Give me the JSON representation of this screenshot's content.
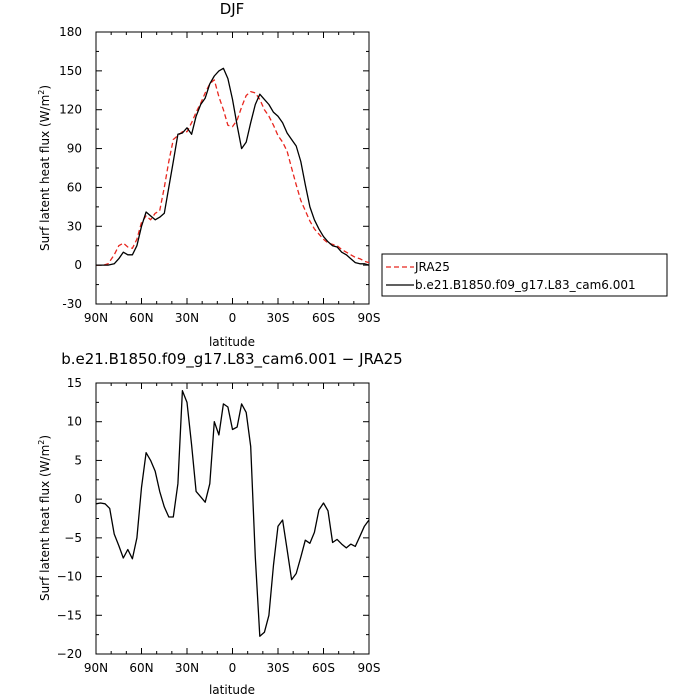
{
  "chart_data": [
    {
      "type": "line",
      "title": "DJF",
      "xlabel": "latitude",
      "ylabel": "Surf latent heat flux (W/m²)",
      "ylabel_main": "Surf latent heat flux (W/m",
      "ylabel_sup": "2",
      "ylabel_tail": ")",
      "xlim": [
        90,
        -90
      ],
      "ylim": [
        -30,
        180
      ],
      "x_ticks": [
        90,
        60,
        30,
        0,
        -30,
        -60,
        -90
      ],
      "x_tick_labels": [
        "90N",
        "60N",
        "30N",
        "0",
        "30S",
        "60S",
        "90S"
      ],
      "y_ticks": [
        -30,
        0,
        30,
        60,
        90,
        120,
        150,
        180
      ],
      "y_tick_labels": [
        "-30",
        "0",
        "30",
        "60",
        "90",
        "120",
        "150",
        "180"
      ],
      "legend": "outside-right",
      "series": [
        {
          "name": "JRA25",
          "color": "#e8261e",
          "dash": "dashed",
          "x": [
            90,
            85,
            82,
            78,
            75,
            72,
            69,
            66,
            63,
            60,
            57,
            54,
            51,
            48,
            45,
            42,
            39,
            36,
            33,
            30,
            27,
            24,
            21,
            18,
            15,
            12,
            9,
            6,
            3,
            0,
            -3,
            -6,
            -9,
            -12,
            -15,
            -18,
            -21,
            -24,
            -27,
            -30,
            -33,
            -36,
            -39,
            -42,
            -45,
            -48,
            -51,
            -54,
            -57,
            -60,
            -63,
            -66,
            -69,
            -72,
            -75,
            -78,
            -81,
            -84,
            -87,
            -90
          ],
          "y": [
            0,
            0,
            1,
            8,
            15,
            17,
            14,
            13,
            20,
            33,
            38,
            35,
            40,
            42,
            60,
            80,
            97,
            100,
            103,
            103,
            110,
            118,
            125,
            133,
            140,
            143,
            130,
            120,
            108,
            107,
            112,
            122,
            131,
            134,
            133,
            128,
            120,
            115,
            108,
            100,
            95,
            88,
            75,
            62,
            50,
            42,
            34,
            28,
            24,
            20,
            17,
            16,
            15,
            12,
            10,
            8,
            6,
            5,
            3,
            2
          ]
        },
        {
          "name": "b.e21.B1850.f09_g17.L83_cam6.001",
          "color": "#000000",
          "dash": "solid",
          "x": [
            90,
            85,
            82,
            78,
            75,
            72,
            69,
            66,
            63,
            60,
            57,
            54,
            51,
            48,
            45,
            42,
            39,
            36,
            33,
            30,
            27,
            24,
            21,
            18,
            15,
            12,
            9,
            6,
            3,
            0,
            -3,
            -6,
            -9,
            -12,
            -15,
            -18,
            -21,
            -24,
            -27,
            -30,
            -33,
            -36,
            -39,
            -42,
            -45,
            -48,
            -51,
            -54,
            -57,
            -60,
            -63,
            -66,
            -69,
            -72,
            -75,
            -78,
            -81,
            -84,
            -87,
            -90
          ],
          "y": [
            0,
            0,
            0,
            1,
            5,
            10,
            8,
            8,
            15,
            30,
            41,
            38,
            35,
            37,
            40,
            60,
            80,
            101,
            102,
            106,
            101,
            115,
            124,
            129,
            140,
            146,
            150,
            152,
            144,
            128,
            108,
            90,
            95,
            110,
            124,
            132,
            128,
            124,
            118,
            115,
            110,
            102,
            97,
            92,
            80,
            62,
            45,
            35,
            28,
            22,
            18,
            15,
            14,
            10,
            8,
            5,
            2,
            1,
            1,
            0
          ]
        }
      ]
    },
    {
      "type": "line",
      "title": "b.e21.B1850.f09_g17.L83_cam6.001  −  JRA25",
      "xlabel": "latitude",
      "ylabel": "Surf latent heat flux (W/m²)",
      "ylabel_main": "Surf latent heat flux (W/m",
      "ylabel_sup": "2",
      "ylabel_tail": ")",
      "xlim": [
        90,
        -90
      ],
      "ylim": [
        -20,
        15
      ],
      "x_ticks": [
        90,
        60,
        30,
        0,
        -30,
        -60,
        -90
      ],
      "x_tick_labels": [
        "90N",
        "60N",
        "30N",
        "0",
        "30S",
        "60S",
        "90S"
      ],
      "y_ticks": [
        -20,
        -15,
        -10,
        -5,
        0,
        5,
        10,
        15
      ],
      "y_tick_labels": [
        "−20",
        "−15",
        "−10",
        "−5",
        "0",
        "5",
        "10",
        "15"
      ],
      "series": [
        {
          "color": "#000000",
          "dash": "solid",
          "x": [
            90,
            87,
            84,
            81,
            78,
            75,
            72,
            69,
            66,
            63,
            60,
            57,
            54,
            51,
            48,
            45,
            42,
            39,
            36,
            33,
            30,
            27,
            24,
            21,
            18,
            15,
            12,
            9,
            6,
            3,
            0,
            -3,
            -6,
            -9,
            -12,
            -15,
            -18,
            -21,
            -24,
            -27,
            -30,
            -33,
            -36,
            -39,
            -42,
            -45,
            -48,
            -51,
            -54,
            -57,
            -60,
            -63,
            -66,
            -69,
            -72,
            -75,
            -78,
            -81,
            -84,
            -87,
            -90
          ],
          "y": [
            -0.6,
            -0.5,
            -0.6,
            -1.2,
            -4.5,
            -6,
            -7.6,
            -6.5,
            -7.7,
            -5,
            1.5,
            6,
            5,
            3.6,
            1,
            -1,
            -2.3,
            -2.3,
            2,
            14,
            12.5,
            7,
            1,
            0.3,
            -0.4,
            2,
            10,
            8.3,
            12.3,
            11.9,
            9,
            9.3,
            12.3,
            11.2,
            6.8,
            -7.5,
            -17.7,
            -17.2,
            -15,
            -8.5,
            -3.5,
            -2.7,
            -6.5,
            -10.4,
            -9.6,
            -7.5,
            -5.3,
            -5.7,
            -4.3,
            -1.4,
            -0.5,
            -1.5,
            -5.6,
            -5.2,
            -5.8,
            -6.3,
            -5.8,
            -6.1,
            -4.8,
            -3.5,
            -2.7
          ]
        }
      ]
    }
  ],
  "legend": {
    "items": [
      {
        "label": "JRA25",
        "color": "#e8261e",
        "dash": "dashed"
      },
      {
        "label": "b.e21.B1850.f09_g17.L83_cam6.001",
        "color": "#000000",
        "dash": "solid"
      }
    ]
  }
}
